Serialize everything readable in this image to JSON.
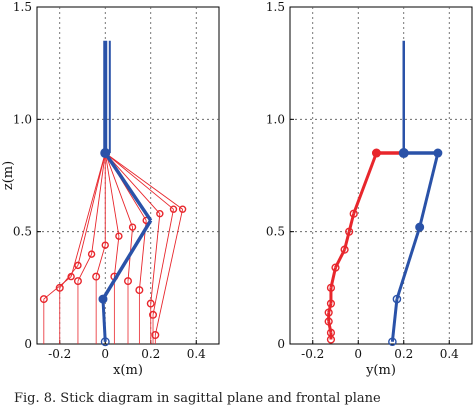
{
  "figure": {
    "caption": "Fig. 8. Stick diagram in sagittal plane and frontal plane"
  },
  "chart_data": [
    {
      "type": "line",
      "xlabel": "x(m)",
      "ylabel": "z(m)",
      "xlim": [
        -0.3,
        0.5
      ],
      "ylim": [
        0,
        1.5
      ],
      "xticks": [
        -0.2,
        0,
        0.2,
        0.4
      ],
      "xtick_labels": [
        "-0.2",
        "0",
        "0.2",
        "0.4"
      ],
      "yticks": [
        0,
        0.5,
        1.0,
        1.5
      ],
      "ytick_labels": [
        "0",
        "0.5",
        "1.0",
        "1.5"
      ],
      "grid": true,
      "colors": {
        "swing": "#e8262c",
        "stance": "#2a52a8"
      },
      "swing_hip": [
        0.0,
        0.85
      ],
      "swing_knees": [
        [
          -0.15,
          0.3
        ],
        [
          -0.12,
          0.35
        ],
        [
          -0.06,
          0.4
        ],
        [
          0.0,
          0.44
        ],
        [
          0.06,
          0.48
        ],
        [
          0.12,
          0.52
        ],
        [
          0.18,
          0.55
        ],
        [
          0.24,
          0.58
        ],
        [
          0.3,
          0.6
        ],
        [
          0.34,
          0.6
        ]
      ],
      "swing_ankles": [
        [
          -0.27,
          0.2
        ],
        [
          -0.2,
          0.25
        ],
        [
          -0.12,
          0.28
        ],
        [
          -0.04,
          0.3
        ],
        [
          0.04,
          0.3
        ],
        [
          0.1,
          0.28
        ],
        [
          0.15,
          0.24
        ],
        [
          0.2,
          0.18
        ],
        [
          0.21,
          0.13
        ],
        [
          0.22,
          0.04
        ]
      ],
      "stance": {
        "trunk_top": [
          0.0,
          1.35
        ],
        "hip": [
          0.0,
          0.85
        ],
        "knee": [
          0.2,
          0.55
        ],
        "ankles": [
          [
            -0.01,
            0.2
          ],
          [
            0.0,
            0.01
          ]
        ]
      }
    },
    {
      "type": "line",
      "xlabel": "y(m)",
      "ylabel": "",
      "xlim": [
        -0.3,
        0.5
      ],
      "ylim": [
        0,
        1.5
      ],
      "xticks": [
        -0.2,
        0,
        0.2,
        0.4
      ],
      "xtick_labels": [
        "-0.2",
        "0",
        "0.2",
        "0.4"
      ],
      "yticks": [
        0,
        0.5,
        1.0,
        1.5
      ],
      "ytick_labels": [
        "0",
        "0.5",
        "1.0",
        "1.5"
      ],
      "grid": true,
      "colors": {
        "swing": "#e8262c",
        "stance": "#2a52a8"
      },
      "red_hips": [
        [
          0.2,
          0.85
        ],
        [
          0.08,
          0.85
        ]
      ],
      "red_knees": [
        [
          -0.02,
          0.58
        ],
        [
          -0.04,
          0.5
        ],
        [
          -0.06,
          0.42
        ],
        [
          -0.1,
          0.34
        ],
        [
          -0.12,
          0.25
        ],
        [
          -0.12,
          0.18
        ]
      ],
      "red_ankles": [
        [
          -0.13,
          0.14
        ],
        [
          -0.13,
          0.1
        ],
        [
          -0.12,
          0.05
        ],
        [
          -0.12,
          0.02
        ]
      ],
      "blue": {
        "trunk": [
          [
            0.2,
            1.35
          ],
          [
            0.2,
            0.85
          ]
        ],
        "hip_right": [
          0.35,
          0.85
        ],
        "knee": [
          0.27,
          0.52
        ],
        "ankle": [
          0.17,
          0.2
        ],
        "foot": [
          0.15,
          0.01
        ]
      }
    }
  ]
}
